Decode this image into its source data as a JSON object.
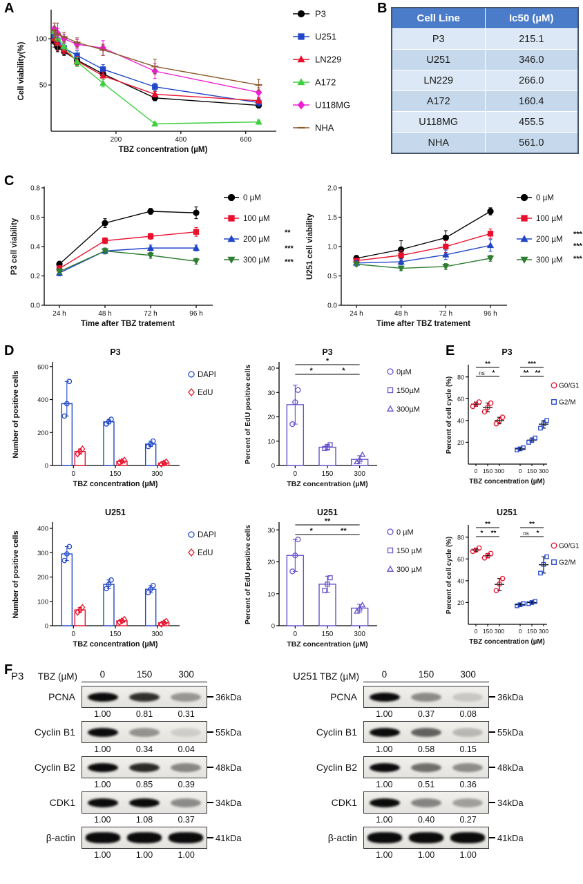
{
  "labels": {
    "A": "A",
    "B": "B",
    "C": "C",
    "D": "D",
    "E": "E",
    "F": "F"
  },
  "chart_data": {
    "panelA": {
      "type": "line",
      "xlabel": "TBZ concentration (µM)",
      "ylabel": "Cell viability(%)",
      "xlim": [
        0,
        690
      ],
      "ylim": [
        0,
        130
      ],
      "xticks": [
        200,
        400,
        600
      ],
      "yticks": [
        50,
        100
      ],
      "x": [
        10,
        20,
        40,
        80,
        160,
        320,
        640
      ],
      "series": [
        {
          "name": "P3",
          "color": "#000000",
          "marker": "circle",
          "y": [
            97,
            91,
            86,
            77,
            62,
            36,
            28
          ],
          "err": [
            6,
            5,
            4,
            5,
            4,
            3,
            3
          ]
        },
        {
          "name": "U251",
          "color": "#2146c7",
          "marker": "square",
          "y": [
            103,
            98,
            90,
            82,
            67,
            48,
            31
          ],
          "err": [
            5,
            4,
            5,
            5,
            5,
            4,
            4
          ]
        },
        {
          "name": "LN229",
          "color": "#e8112d",
          "marker": "triangle",
          "y": [
            100,
            95,
            88,
            76,
            60,
            40,
            33
          ],
          "err": [
            5,
            8,
            4,
            5,
            4,
            3,
            3
          ]
        },
        {
          "name": "A172",
          "color": "#3ecf3e",
          "marker": "triangle",
          "y": [
            108,
            101,
            92,
            75,
            52,
            8,
            10
          ],
          "err": [
            5,
            4,
            4,
            5,
            4,
            2,
            2
          ]
        },
        {
          "name": "U118MG",
          "color": "#ef1fd3",
          "marker": "diamond",
          "y": [
            111,
            106,
            100,
            94,
            90,
            65,
            42
          ],
          "err": [
            6,
            5,
            5,
            5,
            8,
            8,
            5
          ]
        },
        {
          "name": "NHA",
          "color": "#8a5a2b",
          "marker": "dash",
          "y": [
            109,
            105,
            102,
            96,
            88,
            70,
            50
          ],
          "err": [
            8,
            12,
            5,
            5,
            6,
            8,
            6
          ]
        }
      ]
    },
    "panelB": {
      "type": "table",
      "header": [
        "Cell Line",
        "Ic50 (µM)"
      ],
      "rows": [
        [
          "P3",
          "215.1"
        ],
        [
          "U251",
          "346.0"
        ],
        [
          "LN229",
          "266.0"
        ],
        [
          "A172",
          "160.4"
        ],
        [
          "U118MG",
          "455.5"
        ],
        [
          "NHA",
          "561.0"
        ]
      ],
      "header_bg": "#4a7cc9",
      "row_bg_odd": "#dce8f5",
      "row_bg_even": "#c6d9ec"
    },
    "panelC": {
      "left": {
        "type": "line",
        "ylabel": "P3 cell viability",
        "xlabel": "Time after TBZ tratement",
        "categories": [
          "24 h",
          "48 h",
          "72 h",
          "96 h"
        ],
        "ylim": [
          0,
          0.8
        ],
        "yticks": [
          0,
          0.2,
          0.4,
          0.6,
          0.8
        ],
        "series": [
          {
            "name": "0 µM",
            "color": "#000000",
            "marker": "circle",
            "y": [
              0.28,
              0.56,
              0.64,
              0.63
            ],
            "err": [
              0.02,
              0.03,
              0.02,
              0.04
            ],
            "sig": ""
          },
          {
            "name": "100 µM",
            "color": "#e8112d",
            "marker": "square",
            "y": [
              0.25,
              0.44,
              0.47,
              0.5
            ],
            "err": [
              0.02,
              0.02,
              0.02,
              0.03
            ],
            "sig": "**"
          },
          {
            "name": "200 µM",
            "color": "#2146c7",
            "marker": "triangle",
            "y": [
              0.22,
              0.37,
              0.39,
              0.39
            ],
            "err": [
              0.02,
              0.02,
              0.02,
              0.02
            ],
            "sig": "***"
          },
          {
            "name": "300 µM",
            "color": "#2e7d32",
            "marker": "triangle-down",
            "y": [
              0.23,
              0.37,
              0.34,
              0.3
            ],
            "err": [
              0.02,
              0.02,
              0.02,
              0.02
            ],
            "sig": "***"
          }
        ]
      },
      "right": {
        "type": "line",
        "ylabel": "U251 cell viability",
        "xlabel": "Time after TBZ tratement",
        "categories": [
          "24 h",
          "48 h",
          "72 h",
          "96 h"
        ],
        "ylim": [
          0,
          2.0
        ],
        "yticks": [
          0,
          0.5,
          1.0,
          1.5,
          2.0
        ],
        "series": [
          {
            "name": "0 µM",
            "color": "#000000",
            "marker": "circle",
            "y": [
              0.8,
              0.95,
              1.15,
              1.6
            ],
            "err": [
              0.05,
              0.15,
              0.12,
              0.06
            ],
            "sig": ""
          },
          {
            "name": "100 µM",
            "color": "#e8112d",
            "marker": "square",
            "y": [
              0.76,
              0.85,
              1.0,
              1.22
            ],
            "err": [
              0.04,
              0.08,
              0.1,
              0.08
            ],
            "sig": "***"
          },
          {
            "name": "200 µM",
            "color": "#2146c7",
            "marker": "triangle",
            "y": [
              0.72,
              0.74,
              0.86,
              1.02
            ],
            "err": [
              0.04,
              0.05,
              0.08,
              0.1
            ],
            "sig": "***"
          },
          {
            "name": "300 µM",
            "color": "#2e7d32",
            "marker": "triangle-down",
            "y": [
              0.7,
              0.63,
              0.66,
              0.8
            ],
            "err": [
              0.04,
              0.04,
              0.05,
              0.05
            ],
            "sig": "***"
          }
        ]
      }
    },
    "panelD": {
      "p3_counts": {
        "type": "bar",
        "title": "P3",
        "ylabel": "Number of positive cells",
        "xlabel": "TBZ concentration (µM)",
        "categories": [
          "0",
          "150",
          "300"
        ],
        "ylim": [
          0,
          620
        ],
        "yticks": [
          0,
          200,
          400,
          600
        ],
        "series": [
          {
            "name": "DAPI",
            "color": "#2146c7",
            "marker": "circle",
            "values": [
              375,
              265,
              130
            ],
            "points": [
              [
                300,
                375,
                510
              ],
              [
                252,
                265,
                280
              ],
              [
                115,
                130,
                148
              ]
            ]
          },
          {
            "name": "EdU",
            "color": "#e8112d",
            "marker": "diamond",
            "values": [
              85,
              25,
              15
            ],
            "points": [
              [
                70,
                85,
                100
              ],
              [
                18,
                25,
                32
              ],
              [
                8,
                15,
                22
              ]
            ]
          }
        ]
      },
      "p3_percent": {
        "type": "bar",
        "title": "P3",
        "ylabel": "Percent of EdU positive cells",
        "xlabel": "TBZ concentration (µM)",
        "categories": [
          "0",
          "150",
          "300"
        ],
        "ylim": [
          0,
          42
        ],
        "yticks": [
          0,
          10,
          20,
          30,
          40
        ],
        "color": "#6650cc",
        "markers": [
          "circle",
          "square",
          "triangle"
        ],
        "legend": [
          "0µM",
          "150µM",
          "300µM"
        ],
        "values": [
          25,
          7.5,
          2.5
        ],
        "err": [
          8,
          1.2,
          1.5
        ],
        "points": [
          [
            17,
            26,
            31
          ],
          [
            7,
            7.5,
            8.5
          ],
          [
            1.5,
            2.5,
            4.5
          ]
        ],
        "sig": [
          {
            "a": 0,
            "b": 1,
            "label": "*",
            "level": 1
          },
          {
            "a": 1,
            "b": 2,
            "label": "*",
            "level": 1
          },
          {
            "a": 0,
            "b": 2,
            "label": "*",
            "level": 2
          }
        ]
      },
      "u251_counts": {
        "type": "bar",
        "title": "U251",
        "ylabel": "Number of positive cells",
        "xlabel": "TBZ concentration (µM)",
        "categories": [
          "0",
          "150",
          "300"
        ],
        "ylim": [
          0,
          420
        ],
        "yticks": [
          0,
          100,
          200,
          300,
          400
        ],
        "series": [
          {
            "name": "DAPI",
            "color": "#2146c7",
            "marker": "circle",
            "values": [
              295,
              170,
              150
            ],
            "points": [
              [
                268,
                295,
                325
              ],
              [
                152,
                170,
                188
              ],
              [
                136,
                150,
                165
              ]
            ]
          },
          {
            "name": "EdU",
            "color": "#e8112d",
            "marker": "diamond",
            "values": [
              65,
              20,
              12
            ],
            "points": [
              [
                55,
                65,
                75
              ],
              [
                14,
                20,
                26
              ],
              [
                6,
                12,
                18
              ]
            ]
          }
        ]
      },
      "u251_percent": {
        "type": "bar",
        "title": "U251",
        "ylabel": "Percent of EdU positive cells",
        "xlabel": "TBZ concentration (µM)",
        "categories": [
          "0",
          "150",
          "300"
        ],
        "ylim": [
          0,
          32
        ],
        "yticks": [
          0,
          10,
          20,
          30
        ],
        "color": "#6650cc",
        "markers": [
          "circle",
          "square",
          "triangle"
        ],
        "legend": [
          "0 µM",
          "150 µM",
          "300 µM"
        ],
        "values": [
          22,
          13,
          5.5
        ],
        "err": [
          5,
          2.5,
          1.2
        ],
        "points": [
          [
            17,
            22,
            27
          ],
          [
            11,
            13,
            15
          ],
          [
            4.5,
            5.5,
            6.5
          ]
        ],
        "sig": [
          {
            "a": 0,
            "b": 1,
            "label": "*",
            "level": 1
          },
          {
            "a": 1,
            "b": 2,
            "label": "**",
            "level": 1
          },
          {
            "a": 0,
            "b": 2,
            "label": "**",
            "level": 2
          }
        ]
      }
    },
    "panelE": {
      "p3": {
        "type": "scatter",
        "title": "P3",
        "ylabel": "Percent of cell cycle (%)",
        "xlabel": "TBZ concentration (µM)",
        "tick_labels": [
          "0",
          "150",
          "300",
          "0",
          "150",
          "300"
        ],
        "ylim": [
          0,
          90
        ],
        "yticks": [
          20,
          40,
          60,
          80
        ],
        "groups": [
          {
            "name": "G0/G1",
            "color": "#e8112d",
            "marker": "circle",
            "points": [
              [
                53,
                55,
                57
              ],
              [
                48,
                52,
                56
              ],
              [
                37,
                40,
                43
              ]
            ]
          },
          {
            "name": "G2/M",
            "color": "#2146c7",
            "marker": "square",
            "points": [
              [
                13,
                14,
                15
              ],
              [
                20,
                22,
                24
              ],
              [
                33,
                37,
                40
              ]
            ]
          }
        ],
        "sig": [
          {
            "a": 0,
            "b": 1,
            "label": "ns",
            "level": 1
          },
          {
            "a": 1,
            "b": 2,
            "label": "*",
            "level": 1
          },
          {
            "a": 0,
            "b": 2,
            "label": "**",
            "level": 2
          },
          {
            "a": 3,
            "b": 4,
            "label": "**",
            "level": 1
          },
          {
            "a": 4,
            "b": 5,
            "label": "**",
            "level": 1
          },
          {
            "a": 3,
            "b": 5,
            "label": "***",
            "level": 2
          }
        ]
      },
      "u251": {
        "type": "scatter",
        "title": "U251",
        "ylabel": "Percent of cell cycle (%)",
        "xlabel": "TBZ concentration (µM)",
        "tick_labels": [
          "0",
          "150",
          "300",
          "0",
          "150",
          "300"
        ],
        "ylim": [
          0,
          90
        ],
        "yticks": [
          20,
          40,
          60,
          80
        ],
        "groups": [
          {
            "name": "G0/G1",
            "color": "#e8112d",
            "marker": "circle",
            "points": [
              [
                67,
                68,
                70
              ],
              [
                61,
                63,
                65
              ],
              [
                31,
                37,
                42
              ]
            ]
          },
          {
            "name": "G2/M",
            "color": "#2146c7",
            "marker": "square",
            "points": [
              [
                17,
                18,
                19
              ],
              [
                19,
                20,
                21
              ],
              [
                47,
                55,
                62
              ]
            ]
          }
        ],
        "sig": [
          {
            "a": 0,
            "b": 1,
            "label": "*",
            "level": 1
          },
          {
            "a": 1,
            "b": 2,
            "label": "**",
            "level": 1
          },
          {
            "a": 0,
            "b": 2,
            "label": "**",
            "level": 2
          },
          {
            "a": 3,
            "b": 4,
            "label": "ns",
            "level": 1
          },
          {
            "a": 4,
            "b": 5,
            "label": "*",
            "level": 1
          },
          {
            "a": 3,
            "b": 5,
            "label": "**",
            "level": 2
          }
        ]
      }
    },
    "panelF": {
      "dose_label": "TBZ (µM)",
      "doses": [
        "0",
        "150",
        "300"
      ],
      "groups": [
        {
          "name": "P3",
          "rows": [
            {
              "protein": "PCNA",
              "kda": "36kDa",
              "values": [
                "1.00",
                "0.81",
                "0.31"
              ],
              "thick": false
            },
            {
              "protein": "Cyclin B1",
              "kda": "55kDa",
              "values": [
                "1.00",
                "0.34",
                "0.04"
              ],
              "thick": false
            },
            {
              "protein": "Cyclin B2",
              "kda": "48kDa",
              "values": [
                "1.00",
                "0.85",
                "0.39"
              ],
              "thick": false
            },
            {
              "protein": "CDK1",
              "kda": "34kDa",
              "values": [
                "1.00",
                "1.08",
                "0.37"
              ],
              "thick": false
            },
            {
              "protein": "β-actin",
              "kda": "41kDa",
              "values": [
                "1.00",
                "1.00",
                "1.00"
              ],
              "thick": true
            }
          ]
        },
        {
          "name": "U251",
          "rows": [
            {
              "protein": "PCNA",
              "kda": "36kDa",
              "values": [
                "1.00",
                "0.37",
                "0.08"
              ],
              "thick": false
            },
            {
              "protein": "Cyclin B1",
              "kda": "55kDa",
              "values": [
                "1.00",
                "0.58",
                "0.15"
              ],
              "thick": false
            },
            {
              "protein": "Cyclin B2",
              "kda": "48kDa",
              "values": [
                "1.00",
                "0.51",
                "0.36"
              ],
              "thick": false
            },
            {
              "protein": "CDK1",
              "kda": "34kDa",
              "values": [
                "1.00",
                "0.40",
                "0.27"
              ],
              "thick": false
            },
            {
              "protein": "β-actin",
              "kda": "41kDa",
              "values": [
                "1.00",
                "1.00",
                "1.00"
              ],
              "thick": true
            }
          ]
        }
      ]
    }
  }
}
